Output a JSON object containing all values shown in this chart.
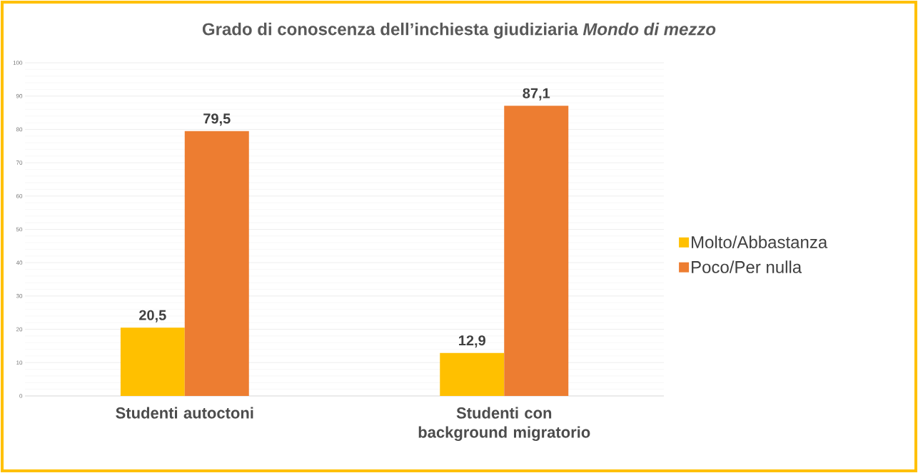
{
  "chart_data": {
    "type": "bar",
    "title": "Grado di conoscenza dell’inchiesta giudiziaria *Mondo di mezzo*",
    "categories": [
      "Studenti autoctoni",
      "Studenti con background migratorio"
    ],
    "series": [
      {
        "name": "Molto/Abbastanza",
        "color": "#ffc000",
        "values": [
          20.5,
          12.9
        ],
        "value_labels": [
          "20,5",
          "12,9"
        ]
      },
      {
        "name": "Poco/Per nulla",
        "color": "#ed7d31",
        "values": [
          79.5,
          87.1
        ],
        "value_labels": [
          "79,5",
          "87,1"
        ]
      }
    ],
    "ylim": [
      0,
      100
    ],
    "yticks": [
      0,
      10,
      20,
      30,
      40,
      50,
      60,
      70,
      80,
      90,
      100
    ],
    "grid": "y",
    "legend": "right"
  }
}
